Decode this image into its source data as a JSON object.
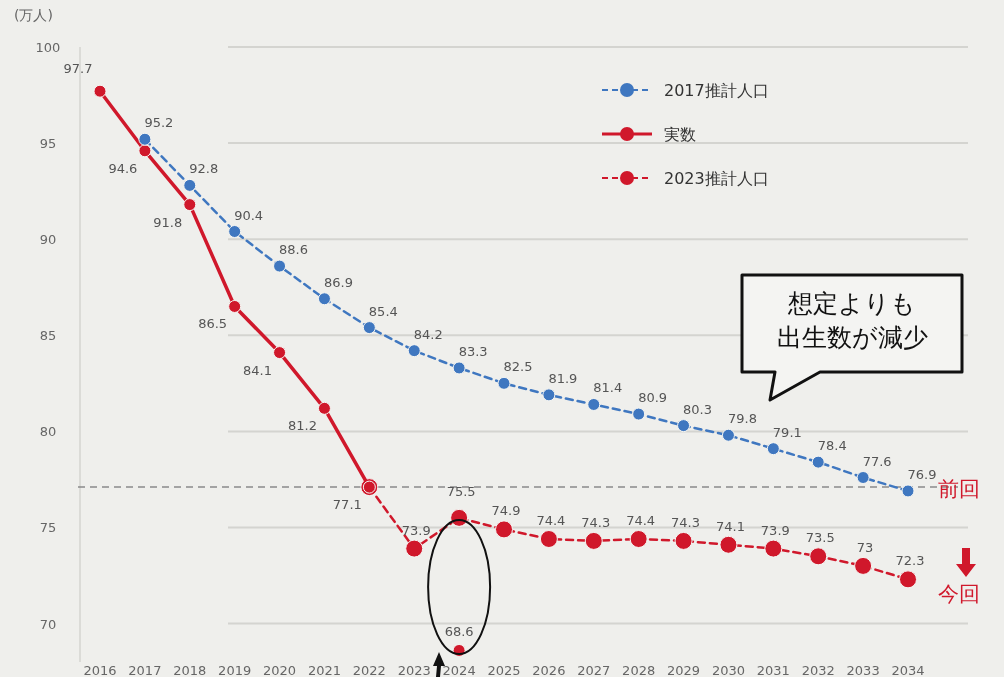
{
  "chart_data": {
    "type": "line",
    "ylabel": "(万人)",
    "categories": [
      "2016",
      "2017",
      "2018",
      "2019",
      "2020",
      "2021",
      "2022",
      "2023",
      "2024",
      "2025",
      "2026",
      "2027",
      "2028",
      "2029",
      "2030",
      "2031",
      "2032",
      "2033",
      "2034"
    ],
    "series": [
      {
        "name": "2017推計人口",
        "color": "#3f77c0",
        "line_style": "dashed",
        "values": [
          null,
          95.2,
          92.8,
          90.4,
          88.6,
          86.9,
          85.4,
          84.2,
          83.3,
          82.5,
          81.9,
          81.4,
          80.9,
          80.3,
          79.8,
          79.1,
          78.4,
          77.6,
          76.9
        ],
        "value_labels": [
          null,
          "95.2",
          "92.8",
          "90.4",
          "88.6",
          "86.9",
          "85.4",
          "84.2",
          "83.3",
          "82.5",
          "81.9",
          "81.4",
          "80.9",
          "80.3",
          "79.8",
          "79.1",
          "78.4",
          "77.6",
          "76.9"
        ]
      },
      {
        "name": "実数",
        "color": "#d0182b",
        "line_style": "solid",
        "values": [
          97.7,
          94.6,
          91.8,
          86.5,
          84.1,
          81.2,
          77.1,
          null,
          68.6,
          null,
          null,
          null,
          null,
          null,
          null,
          null,
          null,
          null,
          null
        ],
        "value_labels": [
          "97.7",
          "94.6",
          "91.8",
          "86.5",
          "84.1",
          "81.2",
          "77.1",
          null,
          "68.6",
          null,
          null,
          null,
          null,
          null,
          null,
          null,
          null,
          null,
          null
        ]
      },
      {
        "name": "2023推計人口",
        "color": "#d0182b",
        "line_style": "dashed",
        "values": [
          null,
          null,
          null,
          null,
          null,
          null,
          77.1,
          73.9,
          75.5,
          74.9,
          74.4,
          74.3,
          74.4,
          74.3,
          74.1,
          73.9,
          73.5,
          73,
          72.3
        ],
        "value_labels": [
          null,
          null,
          null,
          null,
          null,
          null,
          null,
          "73.9",
          "75.5",
          "74.9",
          "74.4",
          "74.3",
          "74.4",
          "74.3",
          "74.1",
          "73.9",
          "73.5",
          "73",
          "72.3"
        ]
      }
    ],
    "ylim": [
      68,
      100
    ],
    "yticks": [
      70,
      75,
      80,
      85,
      90,
      95,
      100
    ],
    "grid": "y",
    "legend": "top right",
    "marker": "circle",
    "ref_lines": [
      {
        "axis": "y",
        "value": 77.1,
        "color": "#8a8a8a",
        "line_style": "dashed"
      }
    ],
    "annotations": [
      "想定よりも出生数が減少",
      {
        "text": "前回",
        "x": "2034",
        "y": 76.9
      },
      {
        "text": "今回",
        "x": "2034",
        "y": 72.3
      }
    ]
  }
}
